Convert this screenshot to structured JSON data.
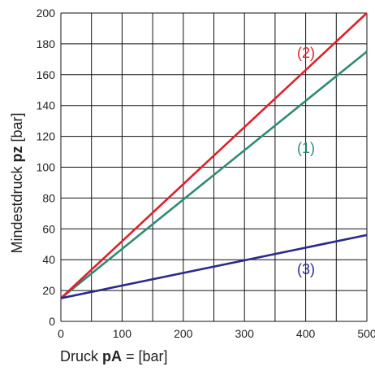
{
  "chart_data": {
    "type": "line",
    "title": "",
    "xlabel": {
      "prefix": "Druck ",
      "bold": "pA",
      "suffix": " = [bar]"
    },
    "ylabel": {
      "prefix": "Mindestdruck ",
      "bold": "pz",
      "suffix": " [bar]"
    },
    "xlim": [
      0,
      500
    ],
    "ylim": [
      0,
      200
    ],
    "x_ticks": [
      0,
      100,
      200,
      300,
      400,
      500
    ],
    "x_ticks_minor": [
      50,
      150,
      250,
      350,
      450
    ],
    "y_ticks": [
      0,
      20,
      40,
      60,
      80,
      100,
      120,
      140,
      160,
      180,
      200
    ],
    "grid": true,
    "series": [
      {
        "name": "(1)",
        "color": "#2e8b73",
        "x": [
          0,
          500
        ],
        "y": [
          15,
          175
        ],
        "label_at": [
          377,
          188
        ]
      },
      {
        "name": "(2)",
        "color": "#e0202a",
        "x": [
          0,
          500
        ],
        "y": [
          15,
          200
        ],
        "label_at": [
          377,
          71
        ]
      },
      {
        "name": "(3)",
        "color": "#2a2a8c",
        "x": [
          0,
          500
        ],
        "y": [
          15,
          56
        ],
        "label_at": [
          377,
          337
        ]
      }
    ]
  }
}
